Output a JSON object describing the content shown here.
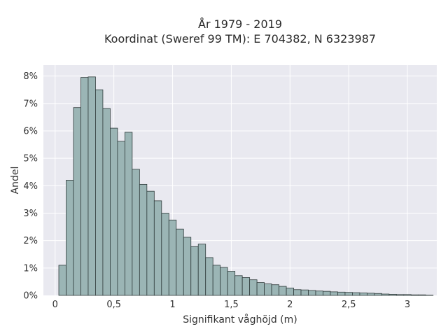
{
  "chart_data": {
    "type": "bar",
    "title_lines": [
      "År 1979 - 2019",
      "Koordinat (Sweref 99 TM): E 704382, N 6323987"
    ],
    "xlabel": "Signifikant våghöjd (m)",
    "ylabel": "Andel",
    "bin_width": 0.0625,
    "bin_start": 0.03125,
    "values": [
      1.1,
      4.2,
      6.85,
      7.95,
      7.97,
      7.5,
      6.82,
      6.1,
      5.62,
      5.95,
      4.6,
      4.05,
      3.8,
      3.45,
      3.0,
      2.75,
      2.42,
      2.12,
      1.78,
      1.87,
      1.38,
      1.1,
      1.02,
      0.88,
      0.72,
      0.65,
      0.57,
      0.47,
      0.42,
      0.39,
      0.33,
      0.27,
      0.21,
      0.2,
      0.18,
      0.16,
      0.15,
      0.13,
      0.12,
      0.11,
      0.1,
      0.09,
      0.08,
      0.07,
      0.05,
      0.04,
      0.03,
      0.03,
      0.02,
      0.02,
      0.01
    ],
    "xlim": [
      -0.1,
      3.25
    ],
    "ylim": [
      0,
      8.4
    ],
    "x_ticks": [
      0,
      0.5,
      1,
      1.5,
      2,
      2.5,
      3
    ],
    "x_tick_labels": [
      "0",
      "0,5",
      "1",
      "1,5",
      "2",
      "2,5",
      "3"
    ],
    "y_ticks": [
      0,
      1,
      2,
      3,
      4,
      5,
      6,
      7,
      8
    ],
    "y_tick_labels": [
      "0%",
      "1%",
      "2%",
      "3%",
      "4%",
      "5%",
      "6%",
      "7%",
      "8%"
    ],
    "grid": true,
    "colors": {
      "bar_fill": "#9bb5b5",
      "bar_stroke": "#2f3b3b",
      "plot_bg": "#e9e9f0",
      "grid": "#ffffff"
    }
  }
}
